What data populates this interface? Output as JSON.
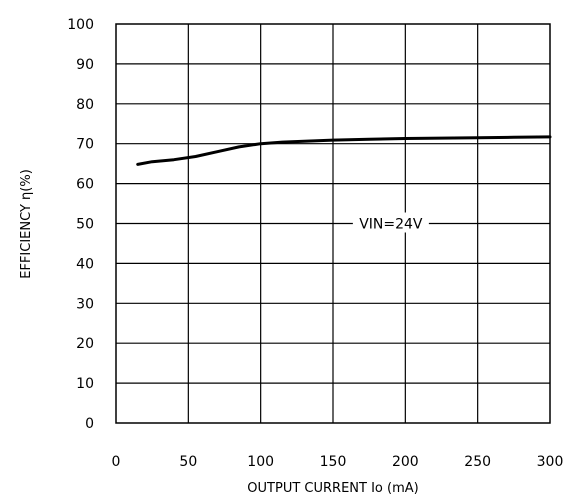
{
  "chart_data": {
    "type": "line",
    "title": "",
    "xlabel": "OUTPUT CURRENT Io (mA)",
    "ylabel": "EFFICIENCY η(%)",
    "xlim": [
      0,
      300
    ],
    "ylim": [
      0,
      100
    ],
    "x_ticks": [
      0,
      50,
      100,
      150,
      200,
      250,
      300
    ],
    "y_ticks": [
      0,
      10,
      20,
      30,
      40,
      50,
      60,
      70,
      80,
      90,
      100
    ],
    "grid": true,
    "series": [
      {
        "x": [
          15,
          25,
          40,
          55,
          70,
          85,
          100,
          115,
          130,
          150,
          175,
          200,
          225,
          250,
          275,
          300
        ],
        "y": [
          64.8,
          65.5,
          66.0,
          66.8,
          68.0,
          69.2,
          70.0,
          70.4,
          70.6,
          70.9,
          71.1,
          71.3,
          71.4,
          71.5,
          71.6,
          71.7
        ]
      }
    ],
    "annotations": [
      {
        "text": "VIN=24V",
        "x": 190,
        "y": 50
      }
    ],
    "colors": {
      "line": "#000000",
      "grid": "#000000",
      "background": "#ffffff"
    }
  }
}
